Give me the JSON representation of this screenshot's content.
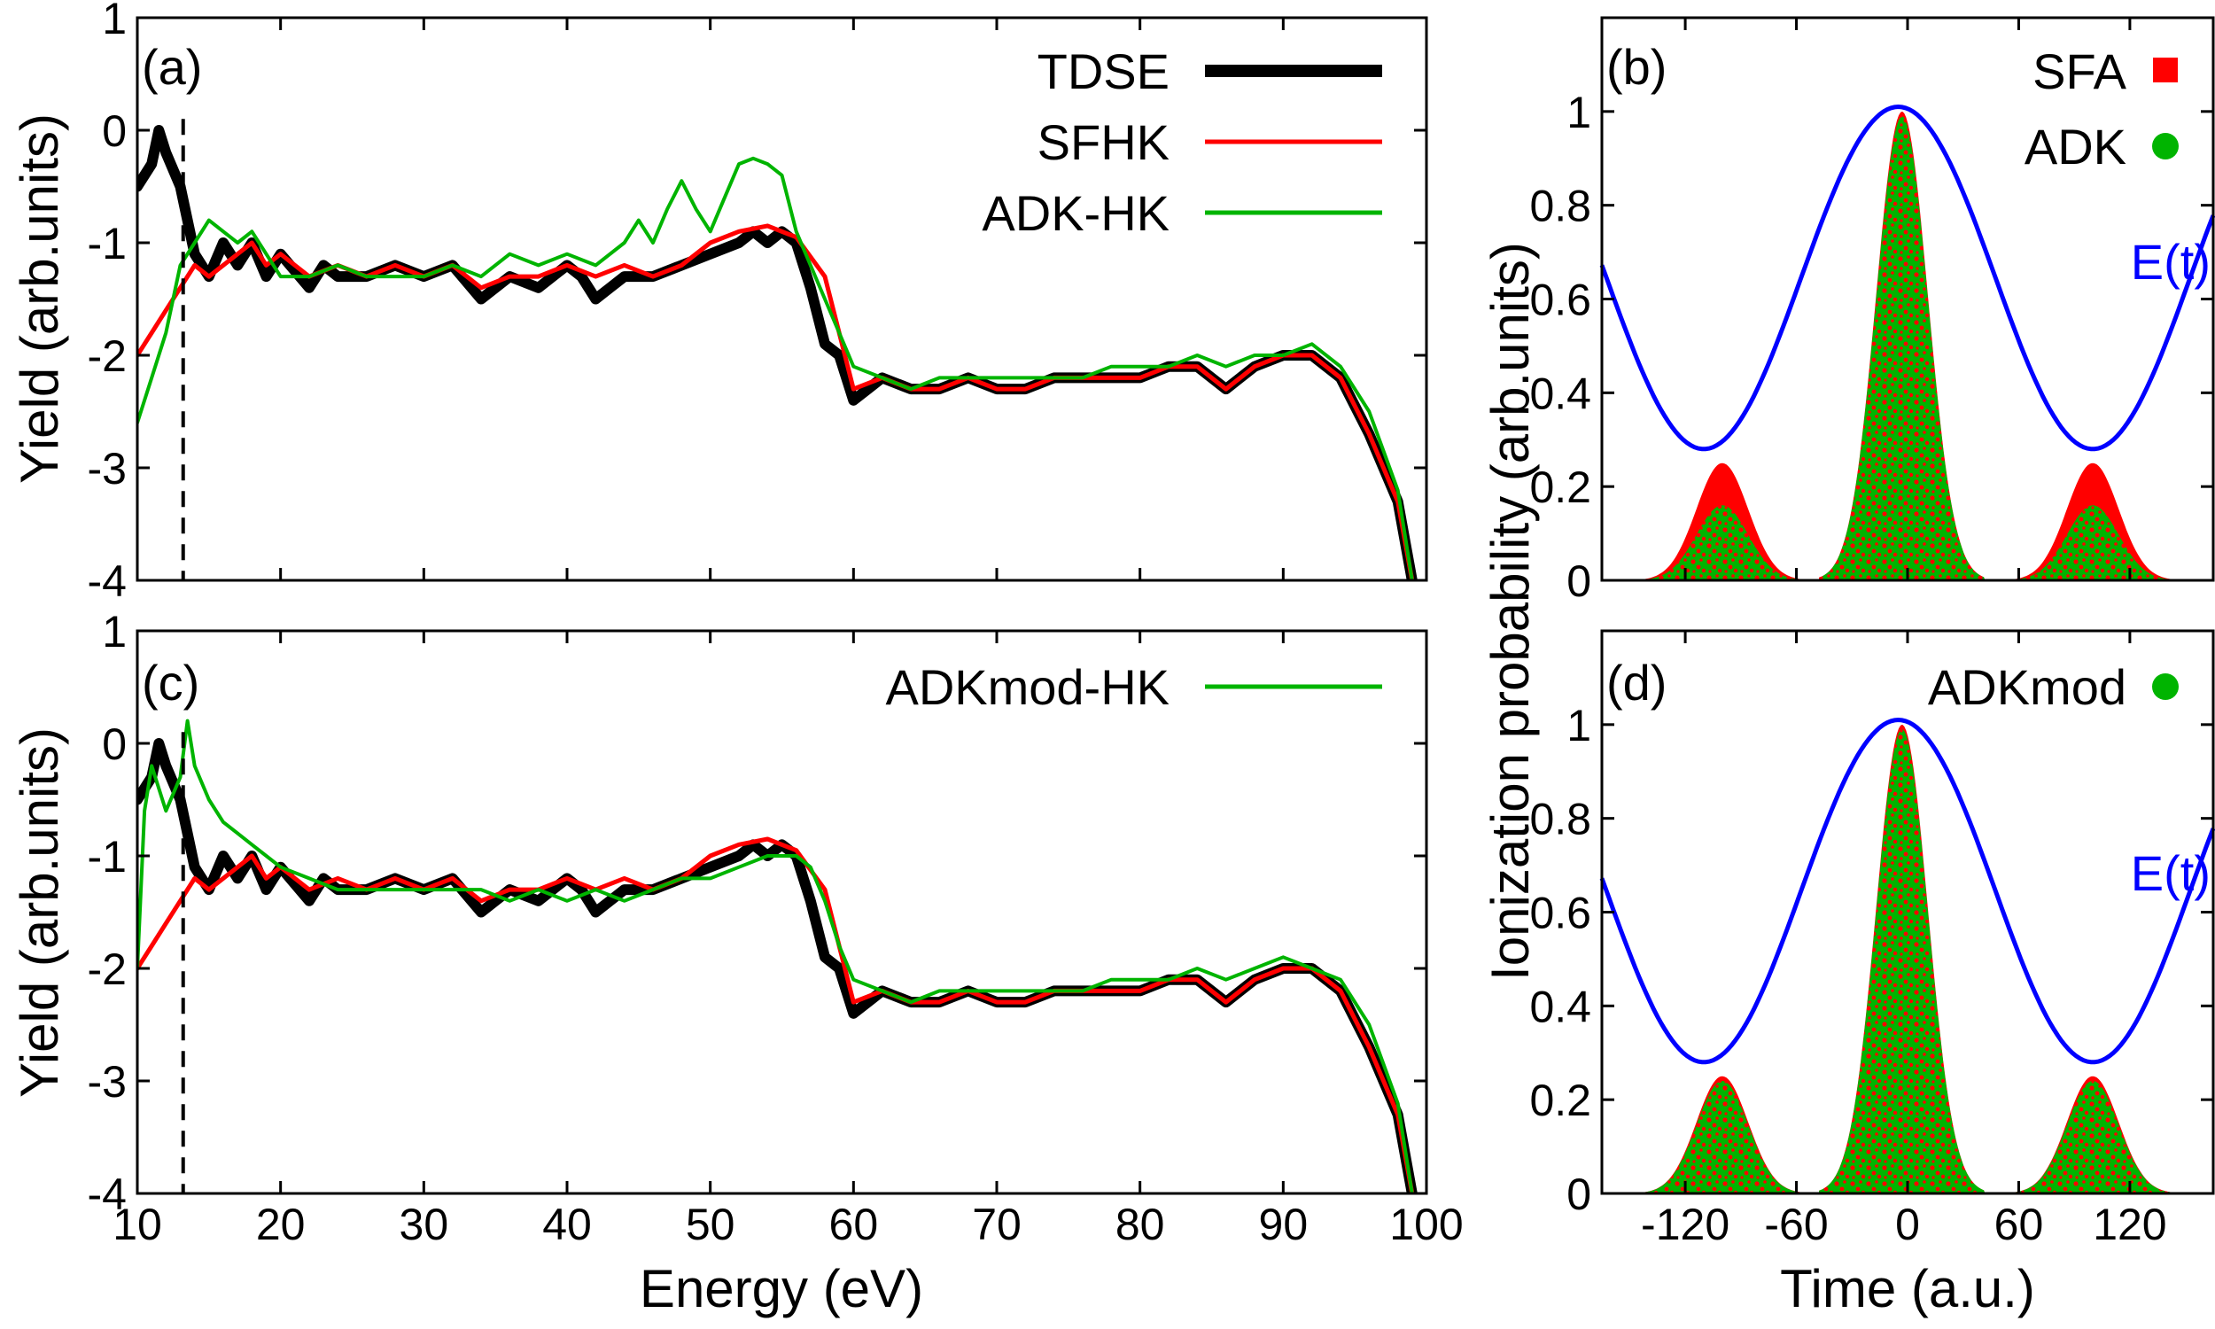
{
  "figure": {
    "colors": {
      "tdse": "#000000",
      "sfhk": "#ff0000",
      "adk": "#00b400",
      "field": "#0000ff"
    }
  },
  "chart_data": [
    {
      "panel": "(a)",
      "type": "line",
      "xlim": [
        10,
        100
      ],
      "ylim": [
        -4,
        1
      ],
      "xticks": [
        "10",
        "20",
        "30",
        "40",
        "50",
        "60",
        "70",
        "80",
        "90",
        "100"
      ],
      "yticks": [
        "-4",
        "-3",
        "-2",
        "-1",
        "0",
        "1"
      ],
      "xlabel": "",
      "ylabel": "Yield (arb.units)",
      "vline_x": 13.2,
      "legend": [
        "TDSE",
        "SFHK",
        "ADK-HK"
      ],
      "legend_position": "top-right",
      "series": [
        {
          "name": "TDSE",
          "x": [
            10,
            11,
            11.5,
            12,
            13,
            14,
            15,
            16,
            17,
            18,
            19,
            20,
            22,
            23,
            24,
            26,
            28,
            30,
            32,
            34,
            36,
            38,
            40,
            41,
            42,
            43,
            44,
            46,
            48,
            50,
            52,
            53,
            54,
            55,
            56,
            57,
            58,
            59,
            60,
            61,
            62,
            64,
            66,
            68,
            70,
            72,
            74,
            76,
            78,
            80,
            82,
            84,
            86,
            88,
            90,
            92,
            94,
            96,
            98,
            99
          ],
          "y": [
            -0.5,
            -0.3,
            0.0,
            -0.2,
            -0.5,
            -1.1,
            -1.3,
            -1.0,
            -1.2,
            -1.0,
            -1.3,
            -1.1,
            -1.4,
            -1.2,
            -1.3,
            -1.3,
            -1.2,
            -1.3,
            -1.2,
            -1.5,
            -1.3,
            -1.4,
            -1.2,
            -1.3,
            -1.5,
            -1.4,
            -1.3,
            -1.3,
            -1.2,
            -1.1,
            -1.0,
            -0.9,
            -1.0,
            -0.9,
            -1.0,
            -1.4,
            -1.9,
            -2.0,
            -2.4,
            -2.3,
            -2.2,
            -2.3,
            -2.3,
            -2.2,
            -2.3,
            -2.3,
            -2.2,
            -2.2,
            -2.2,
            -2.2,
            -2.1,
            -2.1,
            -2.3,
            -2.1,
            -2.0,
            -2.0,
            -2.2,
            -2.7,
            -3.3,
            -4.0
          ]
        },
        {
          "name": "SFHK",
          "x": [
            10,
            11,
            12,
            13,
            14,
            15,
            16,
            17,
            18,
            19,
            20,
            22,
            24,
            26,
            28,
            30,
            32,
            34,
            36,
            38,
            40,
            42,
            44,
            46,
            48,
            50,
            52,
            54,
            56,
            58,
            60,
            62,
            64,
            66,
            68,
            70,
            72,
            74,
            76,
            78,
            80,
            82,
            84,
            86,
            88,
            90,
            92,
            94,
            96,
            98,
            99
          ],
          "y": [
            -2.0,
            -1.8,
            -1.6,
            -1.4,
            -1.2,
            -1.3,
            -1.2,
            -1.1,
            -1.0,
            -1.2,
            -1.1,
            -1.3,
            -1.2,
            -1.3,
            -1.2,
            -1.3,
            -1.2,
            -1.4,
            -1.3,
            -1.3,
            -1.2,
            -1.3,
            -1.2,
            -1.3,
            -1.2,
            -1.0,
            -0.9,
            -0.85,
            -0.95,
            -1.3,
            -2.3,
            -2.2,
            -2.3,
            -2.3,
            -2.2,
            -2.3,
            -2.3,
            -2.2,
            -2.2,
            -2.2,
            -2.2,
            -2.1,
            -2.1,
            -2.3,
            -2.1,
            -2.0,
            -2.0,
            -2.2,
            -2.7,
            -3.3,
            -4.0
          ]
        },
        {
          "name": "ADK-HK",
          "x": [
            10,
            11,
            12,
            13,
            14,
            15,
            16,
            17,
            18,
            19,
            20,
            22,
            24,
            26,
            28,
            30,
            32,
            34,
            36,
            38,
            40,
            42,
            44,
            45,
            46,
            47,
            48,
            49,
            50,
            51,
            52,
            53,
            54,
            55,
            56,
            57,
            58,
            59,
            60,
            62,
            64,
            66,
            68,
            70,
            72,
            74,
            76,
            78,
            80,
            82,
            84,
            86,
            88,
            90,
            92,
            94,
            96,
            98,
            99
          ],
          "y": [
            -2.6,
            -2.2,
            -1.8,
            -1.2,
            -1.0,
            -0.8,
            -0.9,
            -1.0,
            -0.9,
            -1.1,
            -1.3,
            -1.3,
            -1.2,
            -1.3,
            -1.3,
            -1.3,
            -1.2,
            -1.3,
            -1.1,
            -1.2,
            -1.1,
            -1.2,
            -1.0,
            -0.8,
            -1.0,
            -0.7,
            -0.45,
            -0.7,
            -0.9,
            -0.6,
            -0.3,
            -0.25,
            -0.3,
            -0.4,
            -0.9,
            -1.2,
            -1.5,
            -1.8,
            -2.1,
            -2.2,
            -2.3,
            -2.2,
            -2.2,
            -2.2,
            -2.2,
            -2.2,
            -2.2,
            -2.1,
            -2.1,
            -2.1,
            -2.0,
            -2.1,
            -2.0,
            -2.0,
            -1.9,
            -2.1,
            -2.5,
            -3.2,
            -4.0
          ]
        }
      ]
    },
    {
      "panel": "(b)",
      "type": "area",
      "xlim": [
        -165,
        165
      ],
      "ylim": [
        0,
        1.2
      ],
      "xticks": [
        "-120",
        "-60",
        "0",
        "60",
        "120"
      ],
      "yticks": [
        "0",
        "0.2",
        "0.4",
        "0.6",
        "0.8",
        "1"
      ],
      "ylabel": "Ionization probability (arb.units)",
      "field_label": "E(t)",
      "legend": [
        "SFA",
        "ADK"
      ],
      "legend_position": "top-right",
      "field": {
        "name": "E(t)",
        "center": -5,
        "max": 1.01,
        "min": 0.28,
        "period": 210
      },
      "peaks": [
        {
          "center": -100,
          "sfa_height": 0.25,
          "adk_height": 0.16,
          "width": 14
        },
        {
          "center": -3,
          "sfa_height": 1.0,
          "adk_height": 0.99,
          "width": 14
        },
        {
          "center": 100,
          "sfa_height": 0.25,
          "adk_height": 0.16,
          "width": 14
        }
      ]
    },
    {
      "panel": "(c)",
      "type": "line",
      "xlim": [
        10,
        100
      ],
      "ylim": [
        -4,
        1
      ],
      "xticks": [
        "10",
        "20",
        "30",
        "40",
        "50",
        "60",
        "70",
        "80",
        "90",
        "100"
      ],
      "yticks": [
        "-4",
        "-3",
        "-2",
        "-1",
        "0",
        "1"
      ],
      "xlabel": "Energy (eV)",
      "ylabel": "Yield (arb.units)",
      "vline_x": 13.2,
      "legend": [
        "ADKmod-HK"
      ],
      "legend_position": "top-right",
      "series": [
        {
          "name": "TDSE",
          "x": [
            10,
            11,
            11.5,
            12,
            13,
            14,
            15,
            16,
            17,
            18,
            19,
            20,
            22,
            23,
            24,
            26,
            28,
            30,
            32,
            34,
            36,
            38,
            40,
            41,
            42,
            43,
            44,
            46,
            48,
            50,
            52,
            53,
            54,
            55,
            56,
            57,
            58,
            59,
            60,
            61,
            62,
            64,
            66,
            68,
            70,
            72,
            74,
            76,
            78,
            80,
            82,
            84,
            86,
            88,
            90,
            92,
            94,
            96,
            98,
            99
          ],
          "y": [
            -0.5,
            -0.3,
            0.0,
            -0.2,
            -0.5,
            -1.1,
            -1.3,
            -1.0,
            -1.2,
            -1.0,
            -1.3,
            -1.1,
            -1.4,
            -1.2,
            -1.3,
            -1.3,
            -1.2,
            -1.3,
            -1.2,
            -1.5,
            -1.3,
            -1.4,
            -1.2,
            -1.3,
            -1.5,
            -1.4,
            -1.3,
            -1.3,
            -1.2,
            -1.1,
            -1.0,
            -0.9,
            -1.0,
            -0.9,
            -1.0,
            -1.4,
            -1.9,
            -2.0,
            -2.4,
            -2.3,
            -2.2,
            -2.3,
            -2.3,
            -2.2,
            -2.3,
            -2.3,
            -2.2,
            -2.2,
            -2.2,
            -2.2,
            -2.1,
            -2.1,
            -2.3,
            -2.1,
            -2.0,
            -2.0,
            -2.2,
            -2.7,
            -3.3,
            -4.0
          ]
        },
        {
          "name": "SFHK",
          "x": [
            10,
            11,
            12,
            13,
            14,
            15,
            16,
            17,
            18,
            19,
            20,
            22,
            24,
            26,
            28,
            30,
            32,
            34,
            36,
            38,
            40,
            42,
            44,
            46,
            48,
            50,
            52,
            54,
            56,
            58,
            60,
            62,
            64,
            66,
            68,
            70,
            72,
            74,
            76,
            78,
            80,
            82,
            84,
            86,
            88,
            90,
            92,
            94,
            96,
            98,
            99
          ],
          "y": [
            -2.0,
            -1.8,
            -1.6,
            -1.4,
            -1.2,
            -1.3,
            -1.2,
            -1.1,
            -1.0,
            -1.2,
            -1.1,
            -1.3,
            -1.2,
            -1.3,
            -1.2,
            -1.3,
            -1.2,
            -1.4,
            -1.3,
            -1.3,
            -1.2,
            -1.3,
            -1.2,
            -1.3,
            -1.2,
            -1.0,
            -0.9,
            -0.85,
            -0.95,
            -1.3,
            -2.3,
            -2.2,
            -2.3,
            -2.3,
            -2.2,
            -2.3,
            -2.3,
            -2.2,
            -2.2,
            -2.2,
            -2.2,
            -2.1,
            -2.1,
            -2.3,
            -2.1,
            -2.0,
            -2.0,
            -2.2,
            -2.7,
            -3.3,
            -4.0
          ]
        },
        {
          "name": "ADKmod-HK",
          "x": [
            10,
            10.5,
            11,
            12,
            13,
            13.5,
            14,
            15,
            16,
            17,
            18,
            19,
            20,
            22,
            24,
            26,
            28,
            30,
            32,
            34,
            36,
            38,
            40,
            42,
            44,
            46,
            48,
            50,
            52,
            54,
            56,
            57,
            58,
            59,
            60,
            62,
            64,
            66,
            68,
            70,
            72,
            74,
            76,
            78,
            80,
            82,
            84,
            86,
            88,
            90,
            92,
            94,
            96,
            98,
            99
          ],
          "y": [
            -2.0,
            -0.6,
            -0.2,
            -0.6,
            -0.3,
            0.2,
            -0.2,
            -0.5,
            -0.7,
            -0.8,
            -0.9,
            -1.0,
            -1.1,
            -1.2,
            -1.3,
            -1.3,
            -1.3,
            -1.3,
            -1.3,
            -1.3,
            -1.4,
            -1.3,
            -1.4,
            -1.3,
            -1.4,
            -1.3,
            -1.2,
            -1.2,
            -1.1,
            -1.0,
            -1.0,
            -1.1,
            -1.4,
            -1.8,
            -2.1,
            -2.2,
            -2.3,
            -2.2,
            -2.2,
            -2.2,
            -2.2,
            -2.2,
            -2.2,
            -2.1,
            -2.1,
            -2.1,
            -2.0,
            -2.1,
            -2.0,
            -1.9,
            -2.0,
            -2.1,
            -2.5,
            -3.2,
            -4.0
          ]
        }
      ]
    },
    {
      "panel": "(d)",
      "type": "area",
      "xlim": [
        -165,
        165
      ],
      "ylim": [
        0,
        1.2
      ],
      "xticks": [
        "-120",
        "-60",
        "0",
        "60",
        "120"
      ],
      "yticks": [
        "0",
        "0.2",
        "0.4",
        "0.6",
        "0.8",
        "1"
      ],
      "xlabel": "Time (a.u.)",
      "field_label": "E(t)",
      "legend": [
        "ADKmod"
      ],
      "legend_position": "top-right",
      "field": {
        "name": "E(t)",
        "center": -5,
        "max": 1.01,
        "min": 0.28,
        "period": 210
      },
      "peaks": [
        {
          "center": -100,
          "sfa_height": 0.25,
          "adk_height": 0.24,
          "width": 14
        },
        {
          "center": -3,
          "sfa_height": 1.0,
          "adk_height": 0.99,
          "width": 14
        },
        {
          "center": 100,
          "sfa_height": 0.25,
          "adk_height": 0.24,
          "width": 14
        }
      ]
    }
  ]
}
